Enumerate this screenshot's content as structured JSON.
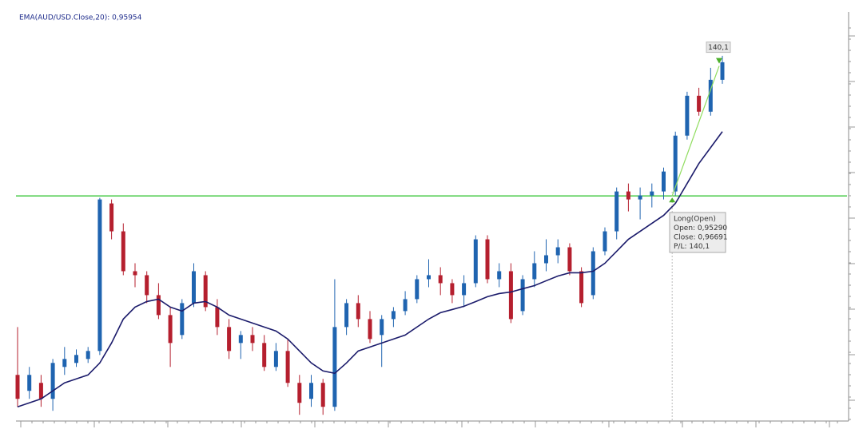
{
  "chart_data": {
    "type": "candlestick",
    "bull_color": "#1f64b0",
    "bear_color": "#b51f2e",
    "ylim": [
      0.9288,
      0.9723
    ],
    "open": [
      0.9336,
      0.93188,
      0.93274,
      0.93102,
      0.93446,
      0.93489,
      0.93532,
      0.93618,
      0.95209,
      0.94908,
      0.94478,
      0.94435,
      0.9422,
      0.94005,
      0.9379,
      0.94134,
      0.94435,
      0.94091,
      0.93876,
      0.93704,
      0.9379,
      0.93704,
      0.93446,
      0.93618,
      0.93274,
      0.93102,
      0.93274,
      0.93016,
      0.93876,
      0.94134,
      0.93962,
      0.9379,
      0.93962,
      0.94048,
      0.94177,
      0.94392,
      0.94435,
      0.94349,
      0.9422,
      0.94349,
      0.94822,
      0.94392,
      0.94478,
      0.94048,
      0.94392,
      0.94564,
      0.9465,
      0.94736,
      0.94478,
      0.9422,
      0.94693,
      0.94908,
      0.95338,
      0.95252,
      0.95295,
      0.95338,
      0.95338,
      0.9594,
      0.9637,
      0.96198,
      0.96542
    ],
    "high": [
      0.93876,
      0.93446,
      0.9336,
      0.93532,
      0.93661,
      0.93635,
      0.93661,
      0.95269,
      0.95252,
      0.94994,
      0.94564,
      0.94478,
      0.94349,
      0.94091,
      0.94177,
      0.94564,
      0.94478,
      0.94177,
      0.93962,
      0.93833,
      0.93876,
      0.9379,
      0.93704,
      0.93747,
      0.9336,
      0.9336,
      0.93317,
      0.94392,
      0.94177,
      0.9422,
      0.94048,
      0.94005,
      0.94091,
      0.94263,
      0.94435,
      0.94607,
      0.94521,
      0.94392,
      0.94435,
      0.94865,
      0.94865,
      0.94564,
      0.94564,
      0.94435,
      0.94693,
      0.94822,
      0.94822,
      0.94779,
      0.94521,
      0.94736,
      0.94951,
      0.95381,
      0.95424,
      0.95381,
      0.95424,
      0.95596,
      0.95983,
      0.96413,
      0.96456,
      0.96671,
      0.968
    ],
    "low": [
      0.93016,
      0.93102,
      0.93016,
      0.92973,
      0.9336,
      0.93446,
      0.93489,
      0.93575,
      0.94822,
      0.94435,
      0.94306,
      0.94134,
      0.93962,
      0.93446,
      0.93747,
      0.94091,
      0.94048,
      0.9379,
      0.93532,
      0.93532,
      0.93618,
      0.93403,
      0.93403,
      0.93231,
      0.9293,
      0.93016,
      0.9293,
      0.92973,
      0.9379,
      0.93876,
      0.93704,
      0.93446,
      0.93876,
      0.94005,
      0.94134,
      0.94306,
      0.9422,
      0.94134,
      0.94091,
      0.94306,
      0.94349,
      0.94306,
      0.93919,
      0.94005,
      0.94306,
      0.94478,
      0.94564,
      0.94435,
      0.94091,
      0.94177,
      0.9465,
      0.94822,
      0.95123,
      0.95037,
      0.95166,
      0.95252,
      0.95295,
      0.95897,
      0.96155,
      0.96155,
      0.96499
    ],
    "close": [
      0.93102,
      0.9336,
      0.93102,
      0.93489,
      0.93532,
      0.93575,
      0.93618,
      0.95252,
      0.94908,
      0.94478,
      0.94435,
      0.9422,
      0.94005,
      0.93704,
      0.94134,
      0.94478,
      0.94091,
      0.93876,
      0.93618,
      0.9379,
      0.93704,
      0.93446,
      0.93618,
      0.93274,
      0.93059,
      0.93274,
      0.93016,
      0.93876,
      0.94134,
      0.93962,
      0.93747,
      0.93962,
      0.94048,
      0.94177,
      0.94392,
      0.94435,
      0.94349,
      0.9422,
      0.94349,
      0.94822,
      0.94392,
      0.94478,
      0.93962,
      0.94392,
      0.94564,
      0.9465,
      0.94736,
      0.94478,
      0.94134,
      0.94693,
      0.94908,
      0.95338,
      0.95252,
      0.95295,
      0.95338,
      0.95553,
      0.9594,
      0.9637,
      0.96198,
      0.96542,
      0.96731
    ],
    "ema": {
      "name": "EMA(AUD/USD.Close,20): 0,95954",
      "color": "#1b1b6b",
      "values": [
        0.93016,
        0.93059,
        0.93102,
        0.93188,
        0.93274,
        0.93317,
        0.9336,
        0.93489,
        0.93704,
        0.93962,
        0.94091,
        0.94151,
        0.94177,
        0.94091,
        0.94048,
        0.94134,
        0.94151,
        0.94091,
        0.94005,
        0.93962,
        0.93919,
        0.93876,
        0.93833,
        0.93747,
        0.93618,
        0.93489,
        0.93403,
        0.93377,
        0.93489,
        0.93618,
        0.93661,
        0.93704,
        0.93747,
        0.9379,
        0.93876,
        0.93962,
        0.94031,
        0.94065,
        0.941,
        0.94151,
        0.94203,
        0.94237,
        0.94254,
        0.94289,
        0.94323,
        0.94375,
        0.94426,
        0.94461,
        0.94461,
        0.94478,
        0.94564,
        0.94693,
        0.94822,
        0.94908,
        0.94994,
        0.9508,
        0.95209,
        0.95424,
        0.95639,
        0.95811,
        0.95983
      ]
    },
    "trade": {
      "label": "Long(Open)",
      "line_color": "#44c944",
      "arrow_color": "#8fdc5e",
      "open": {
        "value": 0.9529,
        "label": "Open: 0,95290"
      },
      "close": {
        "value": 0.96691,
        "label": "Close: 0,96691"
      },
      "pl": {
        "value": 140.1,
        "label": "P/L: 140,1"
      },
      "badge": {
        "value": 140.1,
        "label": "140,1"
      }
    }
  }
}
